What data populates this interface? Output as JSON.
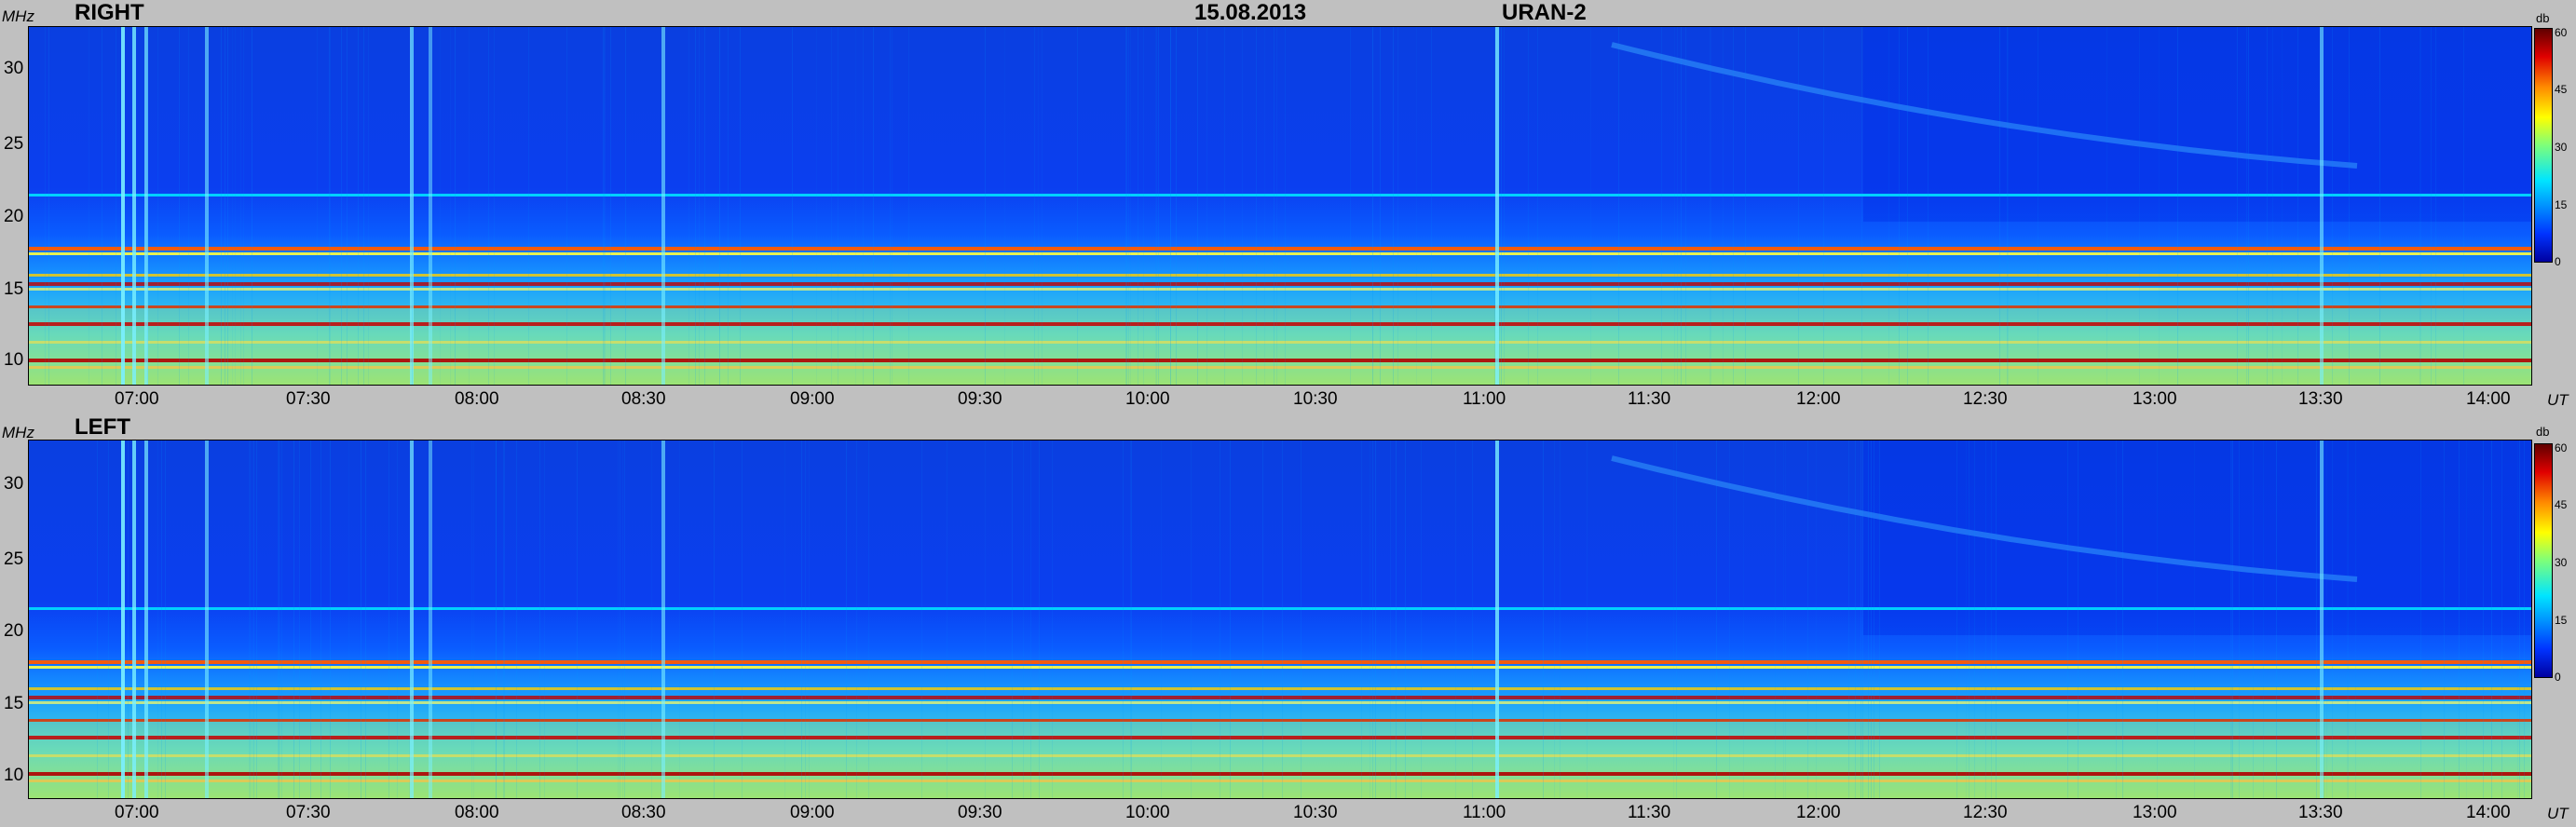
{
  "header": {
    "title_date": "15.08.2013",
    "title_instrument": "URAN-2"
  },
  "chart_data": [
    {
      "type": "heatmap",
      "title": "RIGHT",
      "ylabel": "MHz",
      "xlabel": "UT",
      "colorbar_label": "db",
      "ylim": [
        8.5,
        33
      ],
      "clim": [
        0,
        60
      ],
      "y_ticks": [
        "10",
        "15",
        "20",
        "25",
        "30"
      ],
      "x_ticks": [
        "07:00",
        "07:30",
        "08:00",
        "08:30",
        "09:00",
        "09:30",
        "10:00",
        "10:30",
        "11:00",
        "11:30",
        "12:00",
        "12:30",
        "13:00",
        "13:30",
        "14:00"
      ],
      "colorbar_ticks": [
        "0",
        "15",
        "30",
        "45",
        "60"
      ],
      "colors": [
        "#0000a0",
        "#0033ff",
        "#0099ff",
        "#00e5ff",
        "#7dff7a",
        "#ffff00",
        "#ff8a00",
        "#e00000",
        "#600000"
      ]
    },
    {
      "type": "heatmap",
      "title": "LEFT",
      "ylabel": "MHz",
      "xlabel": "UT",
      "colorbar_label": "db",
      "ylim": [
        8.5,
        33
      ],
      "clim": [
        0,
        60
      ],
      "y_ticks": [
        "10",
        "15",
        "20",
        "25",
        "30"
      ],
      "x_ticks": [
        "07:00",
        "07:30",
        "08:00",
        "08:30",
        "09:00",
        "09:30",
        "10:00",
        "10:30",
        "11:00",
        "11:30",
        "12:00",
        "12:30",
        "13:00",
        "13:30",
        "14:00"
      ],
      "colorbar_ticks": [
        "0",
        "15",
        "30",
        "45",
        "60"
      ],
      "colors": [
        "#0000a0",
        "#0033ff",
        "#0099ff",
        "#00e5ff",
        "#7dff7a",
        "#ffff00",
        "#ff8a00",
        "#e00000",
        "#600000"
      ]
    }
  ]
}
